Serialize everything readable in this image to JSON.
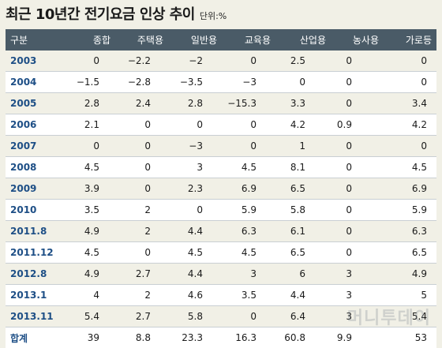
{
  "title": "최근 10년간 전기요금 인상 추이",
  "unit": "단위:%",
  "columns": [
    "구분",
    "종합",
    "주택용",
    "일반용",
    "교육용",
    "산업용",
    "농사용",
    "가로등"
  ],
  "rows": [
    {
      "label": "2003",
      "values": [
        "0",
        "−2.2",
        "−2",
        "0",
        "2.5",
        "0",
        "0"
      ]
    },
    {
      "label": "2004",
      "values": [
        "−1.5",
        "−2.8",
        "−3.5",
        "−3",
        "0",
        "0",
        "0"
      ]
    },
    {
      "label": "2005",
      "values": [
        "2.8",
        "2.4",
        "2.8",
        "−15.3",
        "3.3",
        "0",
        "3.4"
      ]
    },
    {
      "label": "2006",
      "values": [
        "2.1",
        "0",
        "0",
        "0",
        "4.2",
        "0.9",
        "4.2"
      ]
    },
    {
      "label": "2007",
      "values": [
        "0",
        "0",
        "−3",
        "0",
        "1",
        "0",
        "0"
      ]
    },
    {
      "label": "2008",
      "values": [
        "4.5",
        "0",
        "3",
        "4.5",
        "8.1",
        "0",
        "4.5"
      ]
    },
    {
      "label": "2009",
      "values": [
        "3.9",
        "0",
        "2.3",
        "6.9",
        "6.5",
        "0",
        "6.9"
      ]
    },
    {
      "label": "2010",
      "values": [
        "3.5",
        "2",
        "0",
        "5.9",
        "5.8",
        "0",
        "5.9"
      ]
    },
    {
      "label": "2011.8",
      "values": [
        "4.9",
        "2",
        "4.4",
        "6.3",
        "6.1",
        "0",
        "6.3"
      ]
    },
    {
      "label": "2011.12",
      "values": [
        "4.5",
        "0",
        "4.5",
        "4.5",
        "6.5",
        "0",
        "6.5"
      ]
    },
    {
      "label": "2012.8",
      "values": [
        "4.9",
        "2.7",
        "4.4",
        "3",
        "6",
        "3",
        "4.9"
      ]
    },
    {
      "label": "2013.1",
      "values": [
        "4",
        "2",
        "4.6",
        "3.5",
        "4.4",
        "3",
        "5"
      ]
    },
    {
      "label": "2013.11",
      "values": [
        "5.4",
        "2.7",
        "5.8",
        "0",
        "6.4",
        "3",
        "5.4"
      ]
    },
    {
      "label": "합계",
      "values": [
        "39",
        "8.8",
        "23.3",
        "16.3",
        "60.8",
        "9.9",
        "53"
      ]
    }
  ],
  "watermark": "머니투데이",
  "colors": {
    "header_bg": "#4a5b67",
    "year_text": "#1e4f86",
    "page_bg": "#f1f0e6"
  }
}
